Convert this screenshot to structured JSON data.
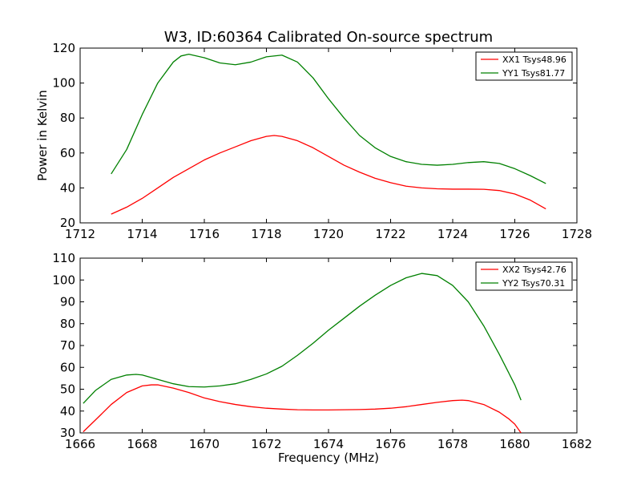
{
  "figure": {
    "title": "W3, ID:60364 Calibrated On-source spectrum",
    "xlabel": "Frequency (MHz)",
    "background": "#ffffff"
  },
  "chart_data": [
    {
      "type": "line",
      "title": "W3, ID:60364 Calibrated On-source spectrum",
      "xlabel": "",
      "ylabel": "Power in Kelvin",
      "xlim": [
        1712,
        1728
      ],
      "ylim": [
        20,
        120
      ],
      "xticks": [
        "1712",
        "1714",
        "1716",
        "1718",
        "1720",
        "1722",
        "1724",
        "1726",
        "1728"
      ],
      "yticks": [
        "20",
        "40",
        "60",
        "80",
        "100",
        "120"
      ],
      "grid": false,
      "legend_position": "top-right",
      "series": [
        {
          "name": "XX1 Tsys48.96",
          "color": "#ff0000",
          "x": [
            1713.0,
            1713.5,
            1714.0,
            1714.5,
            1715.0,
            1715.5,
            1716.0,
            1716.5,
            1717.0,
            1717.5,
            1718.0,
            1718.25,
            1718.5,
            1719.0,
            1719.5,
            1720.0,
            1720.5,
            1721.0,
            1721.5,
            1722.0,
            1722.5,
            1723.0,
            1723.5,
            1724.0,
            1724.5,
            1725.0,
            1725.5,
            1726.0,
            1726.5,
            1727.0
          ],
          "y": [
            25,
            29,
            34,
            40,
            46,
            51,
            56,
            60,
            63.5,
            67,
            69.5,
            70,
            69.5,
            67,
            63,
            58,
            53,
            49,
            45.5,
            43,
            41,
            40,
            39.5,
            39.3,
            39.3,
            39.2,
            38.5,
            36.5,
            33,
            28
          ]
        },
        {
          "name": "YY1 Tsys81.77",
          "color": "#008000",
          "x": [
            1713.0,
            1713.5,
            1714.0,
            1714.5,
            1715.0,
            1715.25,
            1715.5,
            1716.0,
            1716.5,
            1717.0,
            1717.5,
            1718.0,
            1718.5,
            1719.0,
            1719.5,
            1720.0,
            1720.5,
            1721.0,
            1721.5,
            1722.0,
            1722.5,
            1723.0,
            1723.5,
            1724.0,
            1724.5,
            1725.0,
            1725.5,
            1726.0,
            1726.5,
            1727.0
          ],
          "y": [
            48,
            62,
            82,
            100,
            112,
            115.5,
            116.5,
            114.5,
            111.5,
            110.5,
            112,
            115,
            116,
            112,
            103,
            91,
            80,
            70,
            63,
            58,
            55,
            53.5,
            53,
            53.5,
            54.5,
            55,
            54,
            51,
            47,
            42.5
          ]
        }
      ]
    },
    {
      "type": "line",
      "title": "",
      "xlabel": "Frequency (MHz)",
      "ylabel": "",
      "xlim": [
        1666,
        1682
      ],
      "ylim": [
        30,
        110
      ],
      "xticks": [
        "1666",
        "1668",
        "1670",
        "1672",
        "1674",
        "1676",
        "1678",
        "1680",
        "1682"
      ],
      "yticks": [
        "30",
        "40",
        "50",
        "60",
        "70",
        "80",
        "90",
        "100",
        "110"
      ],
      "grid": false,
      "legend_position": "top-right",
      "series": [
        {
          "name": "XX2 Tsys42.76",
          "color": "#ff0000",
          "x": [
            1666.1,
            1666.5,
            1667.0,
            1667.5,
            1668.0,
            1668.3,
            1668.5,
            1669.0,
            1669.5,
            1670.0,
            1670.5,
            1671.0,
            1671.5,
            1672.0,
            1672.5,
            1673.0,
            1673.5,
            1674.0,
            1674.5,
            1675.0,
            1675.5,
            1676.0,
            1676.5,
            1677.0,
            1677.5,
            1678.0,
            1678.3,
            1678.5,
            1679.0,
            1679.5,
            1679.8,
            1680.0,
            1680.2
          ],
          "y": [
            30.5,
            36,
            43,
            48.5,
            51.5,
            52,
            52,
            50.5,
            48.5,
            46,
            44.3,
            43,
            42,
            41.3,
            40.9,
            40.6,
            40.5,
            40.5,
            40.6,
            40.7,
            40.9,
            41.3,
            42,
            43,
            44,
            44.8,
            45,
            44.8,
            43,
            39.5,
            36.5,
            34,
            30
          ]
        },
        {
          "name": "YY2 Tsys70.31",
          "color": "#008000",
          "x": [
            1666.1,
            1666.5,
            1667.0,
            1667.5,
            1667.8,
            1668.0,
            1668.5,
            1669.0,
            1669.5,
            1670.0,
            1670.5,
            1671.0,
            1671.5,
            1672.0,
            1672.5,
            1673.0,
            1673.5,
            1674.0,
            1674.5,
            1675.0,
            1675.5,
            1676.0,
            1676.5,
            1677.0,
            1677.5,
            1678.0,
            1678.5,
            1679.0,
            1679.5,
            1680.0,
            1680.2
          ],
          "y": [
            43.5,
            49.5,
            54.5,
            56.5,
            56.8,
            56.5,
            54.5,
            52.5,
            51.2,
            51,
            51.5,
            52.5,
            54.5,
            57,
            60.5,
            65.5,
            71,
            77,
            82.5,
            88,
            93,
            97.5,
            101,
            103,
            102,
            97.5,
            90,
            79,
            66,
            52,
            45
          ]
        }
      ]
    }
  ]
}
